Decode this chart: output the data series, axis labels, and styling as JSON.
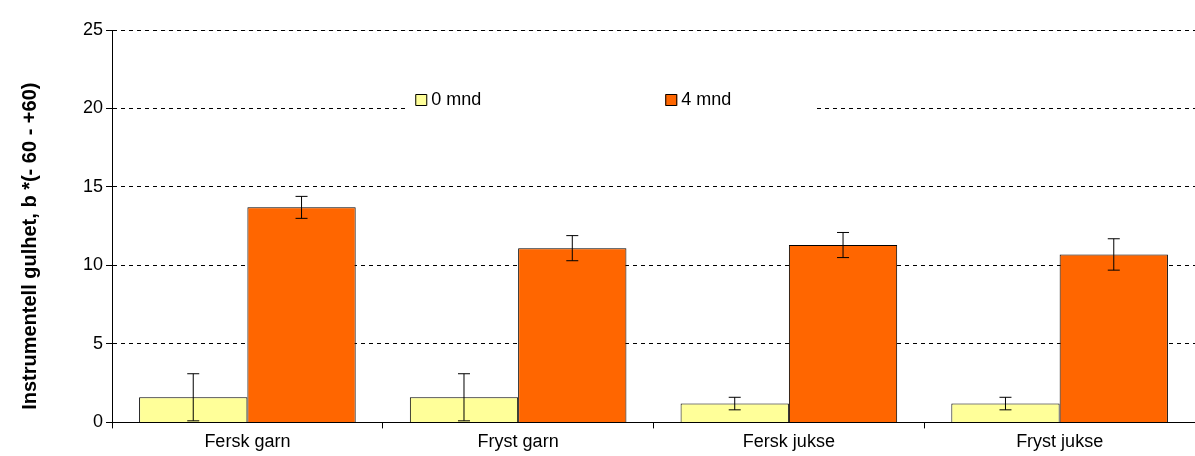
{
  "chart_data": {
    "type": "bar",
    "ylabel": "Instrumentell gulhet, b *(- 60 - +60)",
    "categories": [
      "Fersk garn",
      "Fryst garn",
      "Fersk jukse",
      "Fryst jukse"
    ],
    "series": [
      {
        "name": "0 mnd",
        "color": "#ffff99",
        "values": [
          1.6,
          1.6,
          1.2,
          1.2
        ],
        "errors": [
          1.5,
          1.5,
          0.4,
          0.4
        ]
      },
      {
        "name": "4 mnd",
        "color": "#ff6600",
        "values": [
          13.7,
          11.1,
          11.3,
          10.7
        ],
        "errors": [
          0.7,
          0.8,
          0.8,
          1.0
        ]
      }
    ],
    "ylim": [
      0,
      25
    ],
    "yticks": [
      0,
      5,
      10,
      15,
      20,
      25
    ],
    "grid": "y",
    "legend": "top"
  }
}
